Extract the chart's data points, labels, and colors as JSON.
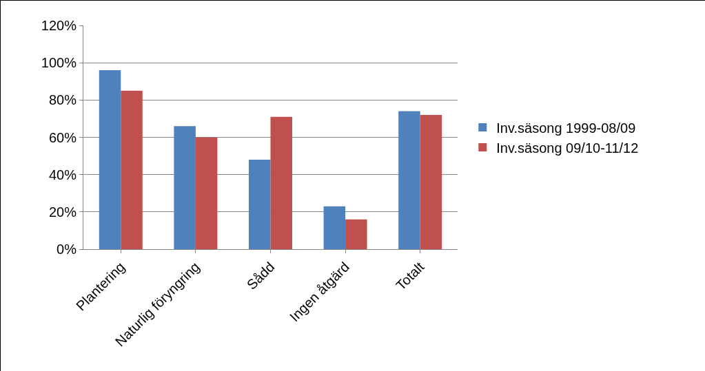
{
  "chart_data": {
    "type": "bar",
    "categories": [
      "Plantering",
      "Naturlig föryngring",
      "Sådd",
      "Ingen åtgärd",
      "Totalt"
    ],
    "series": [
      {
        "name": "Inv.säsong 1999-08/09",
        "color": "#4f81bd",
        "values": [
          96,
          66,
          48,
          23,
          74
        ]
      },
      {
        "name": "Inv.säsong 09/10-11/12",
        "color": "#c0504d",
        "values": [
          85,
          60,
          71,
          16,
          72
        ]
      }
    ],
    "ylim": [
      0,
      120
    ],
    "yticks": [
      {
        "value": 0,
        "label": "0%"
      },
      {
        "value": 20,
        "label": "20%"
      },
      {
        "value": 40,
        "label": "40%"
      },
      {
        "value": 60,
        "label": "60%"
      },
      {
        "value": 80,
        "label": "80%"
      },
      {
        "value": 100,
        "label": "100%"
      },
      {
        "value": 120,
        "label": "120%"
      }
    ],
    "grid": "y",
    "legend": "right"
  }
}
